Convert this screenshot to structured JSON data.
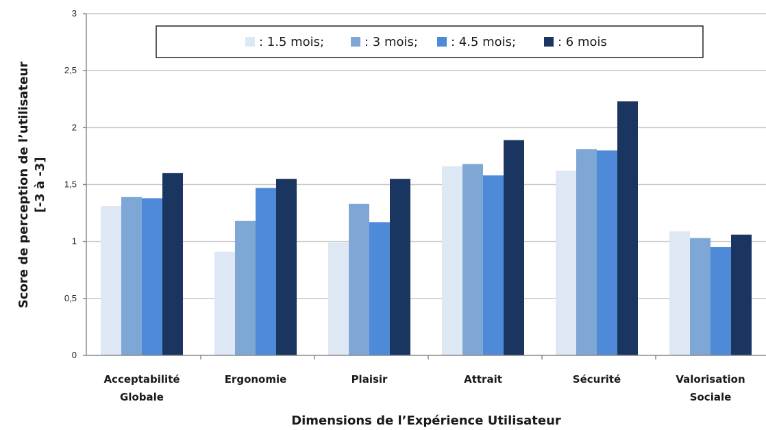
{
  "chart_data": {
    "type": "bar",
    "categories": [
      [
        "Acceptabilité",
        "Globale"
      ],
      [
        "Ergonomie"
      ],
      [
        "Plaisir"
      ],
      [
        "Attrait"
      ],
      [
        "Sécurité"
      ],
      [
        "Valorisation",
        "Sociale"
      ]
    ],
    "series": [
      {
        "name": "1.5 mois",
        "legend_label": ": 1.5 mois;",
        "color": "#dde8f4",
        "values": [
          1.31,
          0.91,
          0.99,
          1.66,
          1.62,
          1.09
        ]
      },
      {
        "name": "3 mois",
        "legend_label": ": 3 mois;",
        "color": "#7fa7d6",
        "values": [
          1.39,
          1.18,
          1.33,
          1.68,
          1.81,
          1.03
        ]
      },
      {
        "name": "4.5 mois",
        "legend_label": ": 4.5 mois;",
        "color": "#4f8ad9",
        "values": [
          1.38,
          1.47,
          1.17,
          1.58,
          1.8,
          0.95
        ]
      },
      {
        "name": "6 mois",
        "legend_label": ": 6 mois",
        "color": "#1a3660",
        "values": [
          1.6,
          1.55,
          1.55,
          1.89,
          2.23,
          1.06
        ]
      }
    ],
    "xlabel": "Dimensions de l’Expérience Utilisateur",
    "ylabel": [
      "Score de perception de l’utilisateur",
      "[-3 à -3]"
    ],
    "ylim": [
      0,
      3
    ],
    "yticks": [
      0,
      0.5,
      1,
      1.5,
      2,
      2.5,
      3
    ],
    "ytick_labels": [
      "0",
      "0,5",
      "1",
      "1,5",
      "2",
      "2,5",
      "3"
    ],
    "grid": true,
    "legend_position": "top-center"
  }
}
